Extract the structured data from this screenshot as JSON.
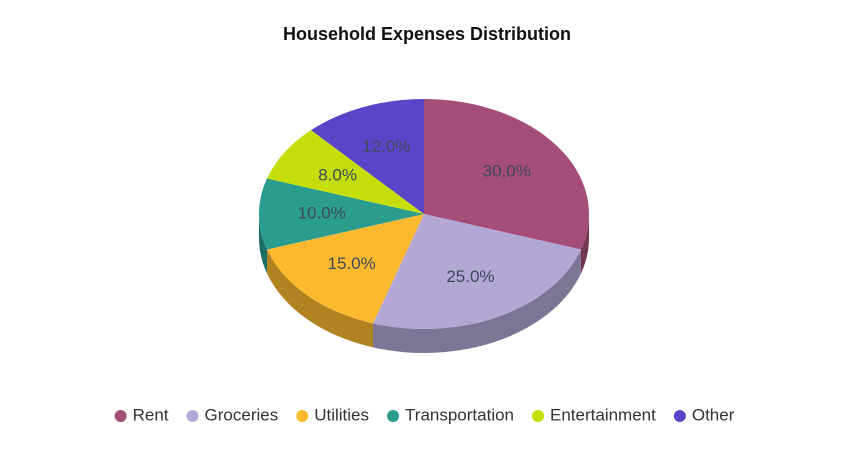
{
  "chart_data": {
    "type": "pie",
    "title": "Household Expenses Distribution",
    "categories": [
      "Rent",
      "Groceries",
      "Utilities",
      "Transportation",
      "Entertainment",
      "Other"
    ],
    "values": [
      30,
      25,
      15,
      10,
      8,
      12
    ],
    "value_labels": [
      "30.0%",
      "25.0%",
      "15.0%",
      "10.0%",
      "8.0%",
      "12.0%"
    ],
    "colors": [
      "#a44d78",
      "#b3a7d6",
      "#fdb92e",
      "#2a9d8f",
      "#c5de0a",
      "#5a44c8"
    ],
    "legend": "bottom"
  }
}
